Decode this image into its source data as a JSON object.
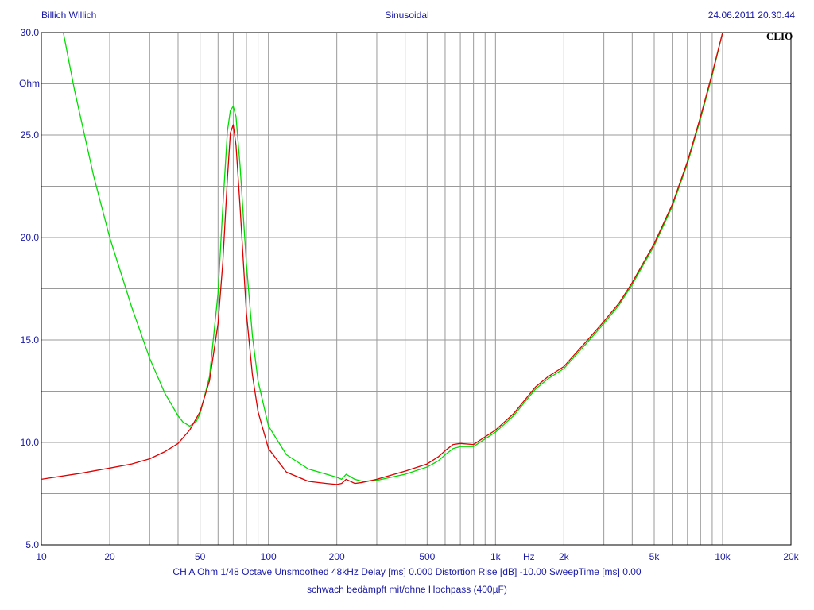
{
  "header": {
    "left": "Billich Willich",
    "center": "Sinusoidal",
    "right": "24.06.2011 20.30.44",
    "brand": "CLIO"
  },
  "footer": {
    "info": "CH A   Ohm    1/48 Octave   Unsmoothed   48kHz    Delay [ms] 0.000    Distortion Rise [dB] -10.00    SweepTime [ms] 0.00",
    "caption": "schwach bedämpft mit/ohne Hochpass (400µF)"
  },
  "colors": {
    "background": "#ffffff",
    "grid": "#9a9a9a",
    "text": "#1a1aa6",
    "series_green": "#00dd00",
    "series_red": "#dd0000"
  },
  "chart_data": {
    "type": "line",
    "title": "",
    "xlabel": "Hz",
    "ylabel": "Ohm",
    "x_scale": "log",
    "xlim": [
      10,
      20000
    ],
    "ylim": [
      5.0,
      30.0
    ],
    "grid": true,
    "x_tick_labels": [
      {
        "value": 10,
        "label": "10"
      },
      {
        "value": 20,
        "label": "20"
      },
      {
        "value": 50,
        "label": "50"
      },
      {
        "value": 100,
        "label": "100"
      },
      {
        "value": 200,
        "label": "200"
      },
      {
        "value": 500,
        "label": "500"
      },
      {
        "value": 1000,
        "label": "1k"
      },
      {
        "value": 2000,
        "label": "2k"
      },
      {
        "value": 5000,
        "label": "5k"
      },
      {
        "value": 10000,
        "label": "10k"
      },
      {
        "value": 20000,
        "label": "20k"
      }
    ],
    "y_tick_labels": [
      {
        "value": 30.0,
        "label": "30.0"
      },
      {
        "value": 25.0,
        "label": "25.0"
      },
      {
        "value": 20.0,
        "label": "20.0"
      },
      {
        "value": 15.0,
        "label": "15.0"
      },
      {
        "value": 10.0,
        "label": "10.0"
      },
      {
        "value": 5.0,
        "label": "5.0"
      }
    ],
    "series": [
      {
        "color": "#00dd00",
        "x": [
          12.5,
          14,
          17,
          20,
          25,
          30,
          35,
          40,
          42,
          45,
          48,
          50,
          55,
          60,
          63,
          66,
          68,
          70,
          72,
          75,
          80,
          85,
          90,
          100,
          120,
          150,
          180,
          200,
          210,
          220,
          240,
          260,
          300,
          400,
          500,
          560,
          600,
          650,
          700,
          800,
          1000,
          1200,
          1500,
          1700,
          2000,
          2500,
          3000,
          3500,
          4000,
          5000,
          6000,
          7000,
          8000,
          9000,
          10000
        ],
        "y": [
          30.0,
          27.2,
          23.0,
          20.0,
          16.6,
          14.1,
          12.4,
          11.3,
          11.0,
          10.8,
          11.0,
          11.4,
          13.2,
          17.3,
          21.5,
          25.2,
          26.2,
          26.4,
          25.9,
          23.5,
          18.7,
          15.2,
          13.0,
          10.8,
          9.4,
          8.7,
          8.45,
          8.3,
          8.2,
          8.45,
          8.2,
          8.1,
          8.15,
          8.45,
          8.8,
          9.1,
          9.4,
          9.7,
          9.8,
          9.8,
          10.5,
          11.3,
          12.6,
          13.1,
          13.6,
          14.8,
          15.8,
          16.7,
          17.7,
          19.6,
          21.5,
          23.6,
          25.8,
          27.9,
          30.0
        ]
      },
      {
        "color": "#dd0000",
        "x": [
          10,
          15,
          20,
          25,
          30,
          35,
          40,
          45,
          50,
          55,
          60,
          63,
          66,
          68,
          70,
          72,
          75,
          80,
          85,
          90,
          100,
          120,
          150,
          180,
          200,
          210,
          220,
          240,
          260,
          300,
          400,
          500,
          560,
          600,
          650,
          700,
          800,
          1000,
          1200,
          1500,
          1700,
          2000,
          2500,
          3000,
          3500,
          4000,
          5000,
          6000,
          7000,
          8000,
          9000,
          10000
        ],
        "y": [
          8.2,
          8.5,
          8.75,
          8.95,
          9.2,
          9.55,
          9.95,
          10.6,
          11.5,
          13.0,
          15.8,
          18.8,
          22.9,
          25.1,
          25.5,
          24.5,
          21.5,
          16.3,
          13.3,
          11.5,
          9.7,
          8.55,
          8.1,
          8.0,
          7.95,
          8.0,
          8.2,
          8.0,
          8.05,
          8.2,
          8.6,
          8.95,
          9.3,
          9.6,
          9.9,
          9.95,
          9.9,
          10.6,
          11.4,
          12.7,
          13.2,
          13.7,
          14.9,
          15.9,
          16.8,
          17.8,
          19.7,
          21.6,
          23.7,
          25.9,
          28.0,
          30.0
        ]
      }
    ]
  }
}
